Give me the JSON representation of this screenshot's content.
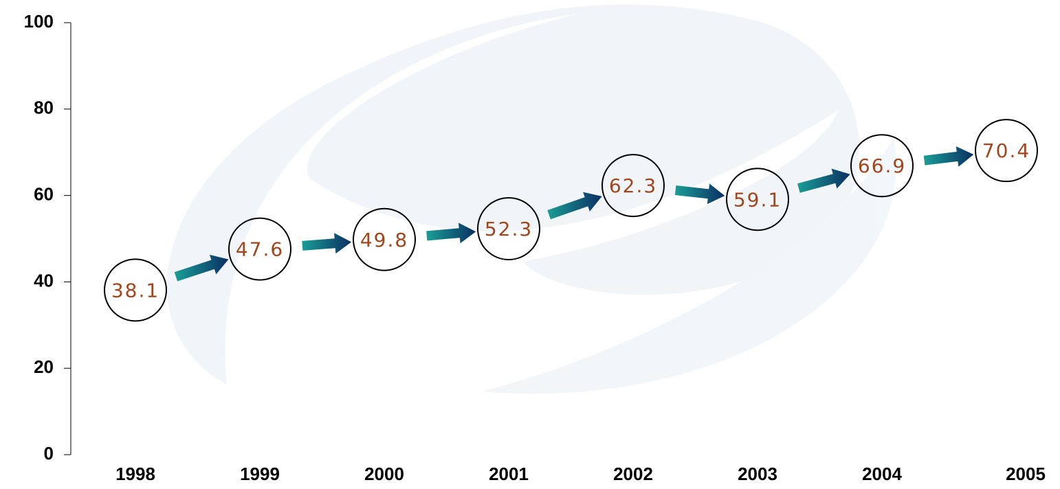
{
  "chart_data": {
    "type": "line",
    "categories": [
      "1998",
      "1999",
      "2000",
      "2001",
      "2002",
      "2003",
      "2004",
      "2005"
    ],
    "values": [
      38.1,
      47.6,
      49.8,
      52.3,
      62.3,
      59.1,
      66.9,
      70.4
    ],
    "color": "#a2461e",
    "ylim": [
      0,
      100
    ],
    "yticks": [
      0,
      20,
      40,
      60,
      80,
      100
    ]
  }
}
